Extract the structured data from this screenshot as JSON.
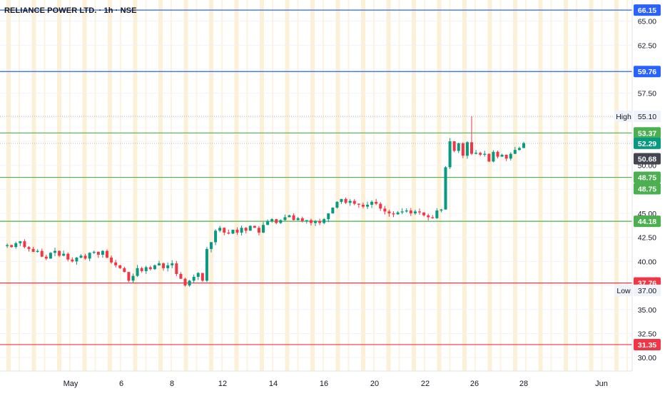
{
  "header": {
    "title": "RELIANCE POWER LTD. · 1h · NSE"
  },
  "chart_data": {
    "type": "candlestick",
    "ylim": [
      28.6,
      67.2
    ],
    "xlim": [
      0,
      932
    ],
    "y_ticks": [
      30.0,
      32.5,
      35.0,
      37.5,
      40.0,
      42.5,
      45.0,
      47.5,
      50.0,
      52.5,
      55.0,
      57.5,
      60.0,
      62.5,
      65.0
    ],
    "y_tick_labels": [
      "30.00",
      "32.50",
      "35.00",
      "",
      "40.00",
      "42.50",
      "45.00",
      "",
      "50.00",
      "",
      "",
      "57.50",
      "",
      "62.50",
      "65.00"
    ],
    "x_tick_labels": [
      "May",
      "6",
      "8",
      "12",
      "14",
      "16",
      "20",
      "22",
      "26",
      "28",
      "Jun"
    ],
    "grid": true,
    "horizontal_levels": [
      {
        "value": 66.15,
        "label": "66.15",
        "color": "#2962ff"
      },
      {
        "value": 59.76,
        "label": "59.76",
        "color": "#2962ff"
      },
      {
        "value": 53.37,
        "label": "53.37",
        "color": "#4caf50"
      },
      {
        "value": 48.75,
        "label": "48.75",
        "color": "#4caf50"
      },
      {
        "value": 44.18,
        "label": "44.18",
        "color": "#4caf50"
      },
      {
        "value": 37.76,
        "label": "37.76",
        "color": "#f23645"
      },
      {
        "value": 31.35,
        "label": "31.35",
        "color": "#f23645"
      }
    ],
    "extra_labels": [
      {
        "value": 52.29,
        "label": "52.29",
        "color": "#089981"
      },
      {
        "value": 50.68,
        "label": "50.68",
        "color": "#434651"
      },
      {
        "value": 48.75,
        "label": "48.75",
        "color": "#4caf50"
      }
    ],
    "high": {
      "label": "High",
      "value": "55.10",
      "y": 55.1
    },
    "low": {
      "label": "Low",
      "value": "37.00",
      "y": 37.0
    },
    "colors": {
      "up": "#089981",
      "down": "#f23645",
      "grid": "#f0f3fa",
      "session": "#fbe9c4"
    },
    "path_points": [
      41.6,
      41.7,
      41.5,
      41.9,
      42.1,
      41.5,
      41.3,
      41.0,
      41.1,
      40.5,
      40.3,
      40.9,
      41.1,
      40.6,
      40.8,
      40.2,
      40.0,
      40.4,
      40.6,
      40.3,
      40.9,
      41.0,
      40.7,
      41.1,
      40.4,
      39.9,
      39.6,
      39.3,
      38.9,
      38.0,
      38.5,
      39.3,
      39.0,
      39.4,
      39.2,
      39.6,
      39.8,
      39.3,
      39.6,
      39.8,
      38.7,
      38.2,
      37.5,
      38.0,
      38.4,
      38.8,
      38.0,
      41.3,
      42.0,
      43.2,
      43.5,
      43.0,
      42.9,
      43.3,
      43.0,
      43.5,
      43.2,
      43.7,
      43.5,
      43.0,
      43.8,
      44.2,
      44.4,
      44.0,
      44.3,
      44.6,
      44.8,
      44.3,
      44.5,
      44.2,
      44.3,
      44.0,
      44.2,
      44.0,
      44.4,
      45.0,
      45.6,
      46.2,
      46.5,
      46.1,
      46.3,
      46.0,
      45.9,
      45.7,
      45.9,
      46.2,
      46.0,
      45.5,
      45.2,
      45.0,
      44.9,
      45.1,
      45.2,
      45.3,
      45.0,
      45.2,
      45.1,
      44.8,
      44.6,
      44.5,
      45.3,
      45.4,
      49.8,
      52.5,
      51.5,
      52.3,
      51.0,
      52.4,
      51.2,
      51.3,
      51.1,
      51.2,
      50.4,
      51.4,
      50.9,
      51.1,
      50.7,
      51.2,
      51.6,
      51.8,
      52.3
    ]
  }
}
